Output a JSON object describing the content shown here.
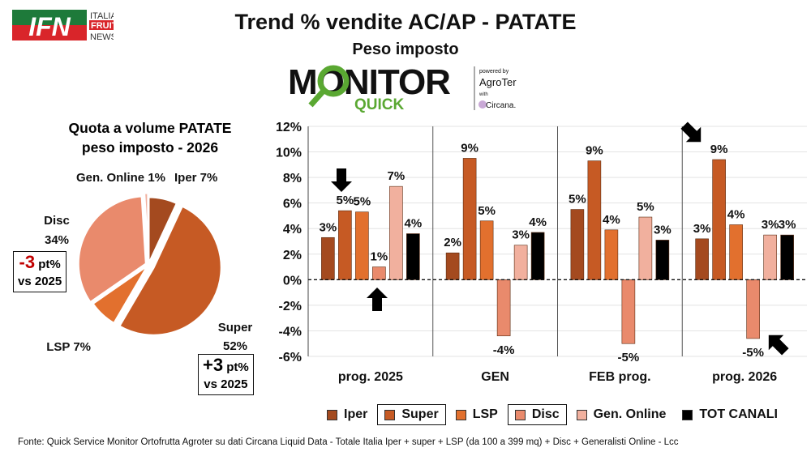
{
  "header": {
    "title": "Trend % vendite AC/AP - PATATE",
    "subtitle": "Peso imposto",
    "logo_ifn": {
      "letters": "IFN",
      "text": [
        "ITALIA",
        "FRUIT",
        "NEWS"
      ]
    },
    "logo_monitor": {
      "word": "MONITOR",
      "sub": "QUICK",
      "powered": "powered by",
      "agroter": "AgroTer",
      "with": "with",
      "circana": "Circana."
    }
  },
  "footer": "Fonte: Quick Service Monitor Ortofrutta Agroter su dati Circana Liquid Data - Totale Italia Iper + super + LSP (da 100 a 399 mq) + Disc + Generalisti Online - Lcc",
  "colors": {
    "Iper": "#a44a1f",
    "Super": "#c65a24",
    "LSP": "#e2702e",
    "Disc": "#e98a6c",
    "Gen. Online": "#f1b09e",
    "TOT CANALI": "#000000",
    "monitor_green": "#5aa832",
    "ifn_green": "#1e7a3a",
    "ifn_red": "#d9252a"
  },
  "pie": {
    "title_lines": [
      "Quota a volume PATATE",
      "peso imposto - 2026"
    ],
    "slices": [
      {
        "name": "Iper",
        "value": 7,
        "label": "Iper 7%"
      },
      {
        "name": "Super",
        "value": 52,
        "label_lines": [
          "Super",
          "52%"
        ]
      },
      {
        "name": "LSP",
        "value": 7,
        "label": "LSP 7%"
      },
      {
        "name": "Disc",
        "value": 34,
        "label_lines": [
          "Disc",
          "34%"
        ]
      },
      {
        "name": "Gen. Online",
        "value": 1,
        "label": "Gen. Online 1%"
      }
    ],
    "notes": {
      "disc": {
        "delta": "-3",
        "unit": " pt%",
        "vs": "vs 2025"
      },
      "super": {
        "delta": "+3",
        "unit": " pt%",
        "vs": "vs 2025"
      }
    }
  },
  "chart_data": {
    "type": "bar",
    "categories": [
      "prog. 2025",
      "GEN",
      "FEB prog.",
      "prog. 2026"
    ],
    "ylim": [
      -6,
      12
    ],
    "yticks": [
      "-6%",
      "-4%",
      "-2%",
      "0%",
      "2%",
      "4%",
      "6%",
      "8%",
      "10%",
      "12%"
    ],
    "grid": true,
    "legend_placement": "bottom",
    "series": [
      {
        "name": "Iper",
        "values": [
          3.3,
          2.1,
          5.5,
          3.2
        ],
        "labels": [
          "3%",
          "2%",
          "5%",
          "3%"
        ]
      },
      {
        "name": "Super",
        "values": [
          5.4,
          9.5,
          9.3,
          9.4
        ],
        "labels": [
          "5%",
          "9%",
          "9%",
          "9%"
        ]
      },
      {
        "name": "LSP",
        "values": [
          5.3,
          4.6,
          3.9,
          4.3
        ],
        "labels": [
          "5%",
          "5%",
          "4%",
          "4%"
        ]
      },
      {
        "name": "Disc",
        "values": [
          1.0,
          -4.4,
          -5.0,
          -4.6
        ],
        "labels": [
          "1%",
          "-4%",
          "-5%",
          "-5%"
        ]
      },
      {
        "name": "Gen. Online",
        "values": [
          7.3,
          2.7,
          4.9,
          3.5
        ],
        "labels": [
          "7%",
          "3%",
          "5%",
          "3%"
        ]
      },
      {
        "name": "TOT CANALI",
        "values": [
          3.6,
          3.7,
          3.1,
          3.5
        ],
        "labels": [
          "4%",
          "4%",
          "3%",
          "3%"
        ]
      }
    ],
    "boxed_legend_entries": [
      "Super",
      "Disc"
    ]
  }
}
